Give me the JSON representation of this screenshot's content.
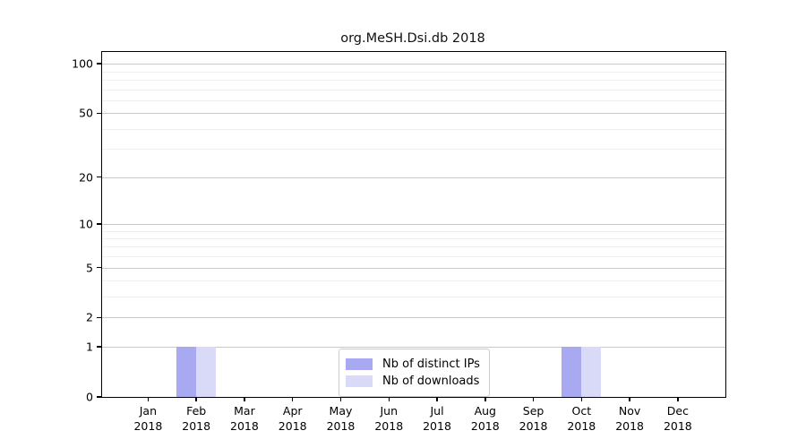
{
  "chart_data": {
    "type": "bar",
    "title": "org.MeSH.Dsi.db 2018",
    "categories": [
      "Jan",
      "Feb",
      "Mar",
      "Apr",
      "May",
      "Jun",
      "Jul",
      "Aug",
      "Sep",
      "Oct",
      "Nov",
      "Dec"
    ],
    "category_year": "2018",
    "series": [
      {
        "name": "Nb of distinct IPs",
        "color": "#a9a9f1",
        "values": [
          0,
          1,
          0,
          0,
          0,
          0,
          0,
          0,
          0,
          1,
          0,
          0
        ]
      },
      {
        "name": "Nb of downloads",
        "color": "#d9daf7",
        "values": [
          0,
          1,
          0,
          0,
          0,
          0,
          0,
          0,
          0,
          1,
          0,
          0
        ]
      }
    ],
    "xlabel": "",
    "ylabel": "",
    "yscale": "log1p",
    "ylim": [
      0,
      118
    ],
    "yticks": [
      0,
      1,
      2,
      5,
      10,
      20,
      50,
      100
    ],
    "minor_gridlines": [
      3,
      4,
      6,
      7,
      8,
      9,
      30,
      40,
      60,
      70,
      80,
      90
    ],
    "grid": true,
    "legend_position": "lower center"
  },
  "colors": {
    "major_grid": "#c9c9c9",
    "minor_grid": "#efefef",
    "spine": "#000000",
    "text": "#000000"
  }
}
